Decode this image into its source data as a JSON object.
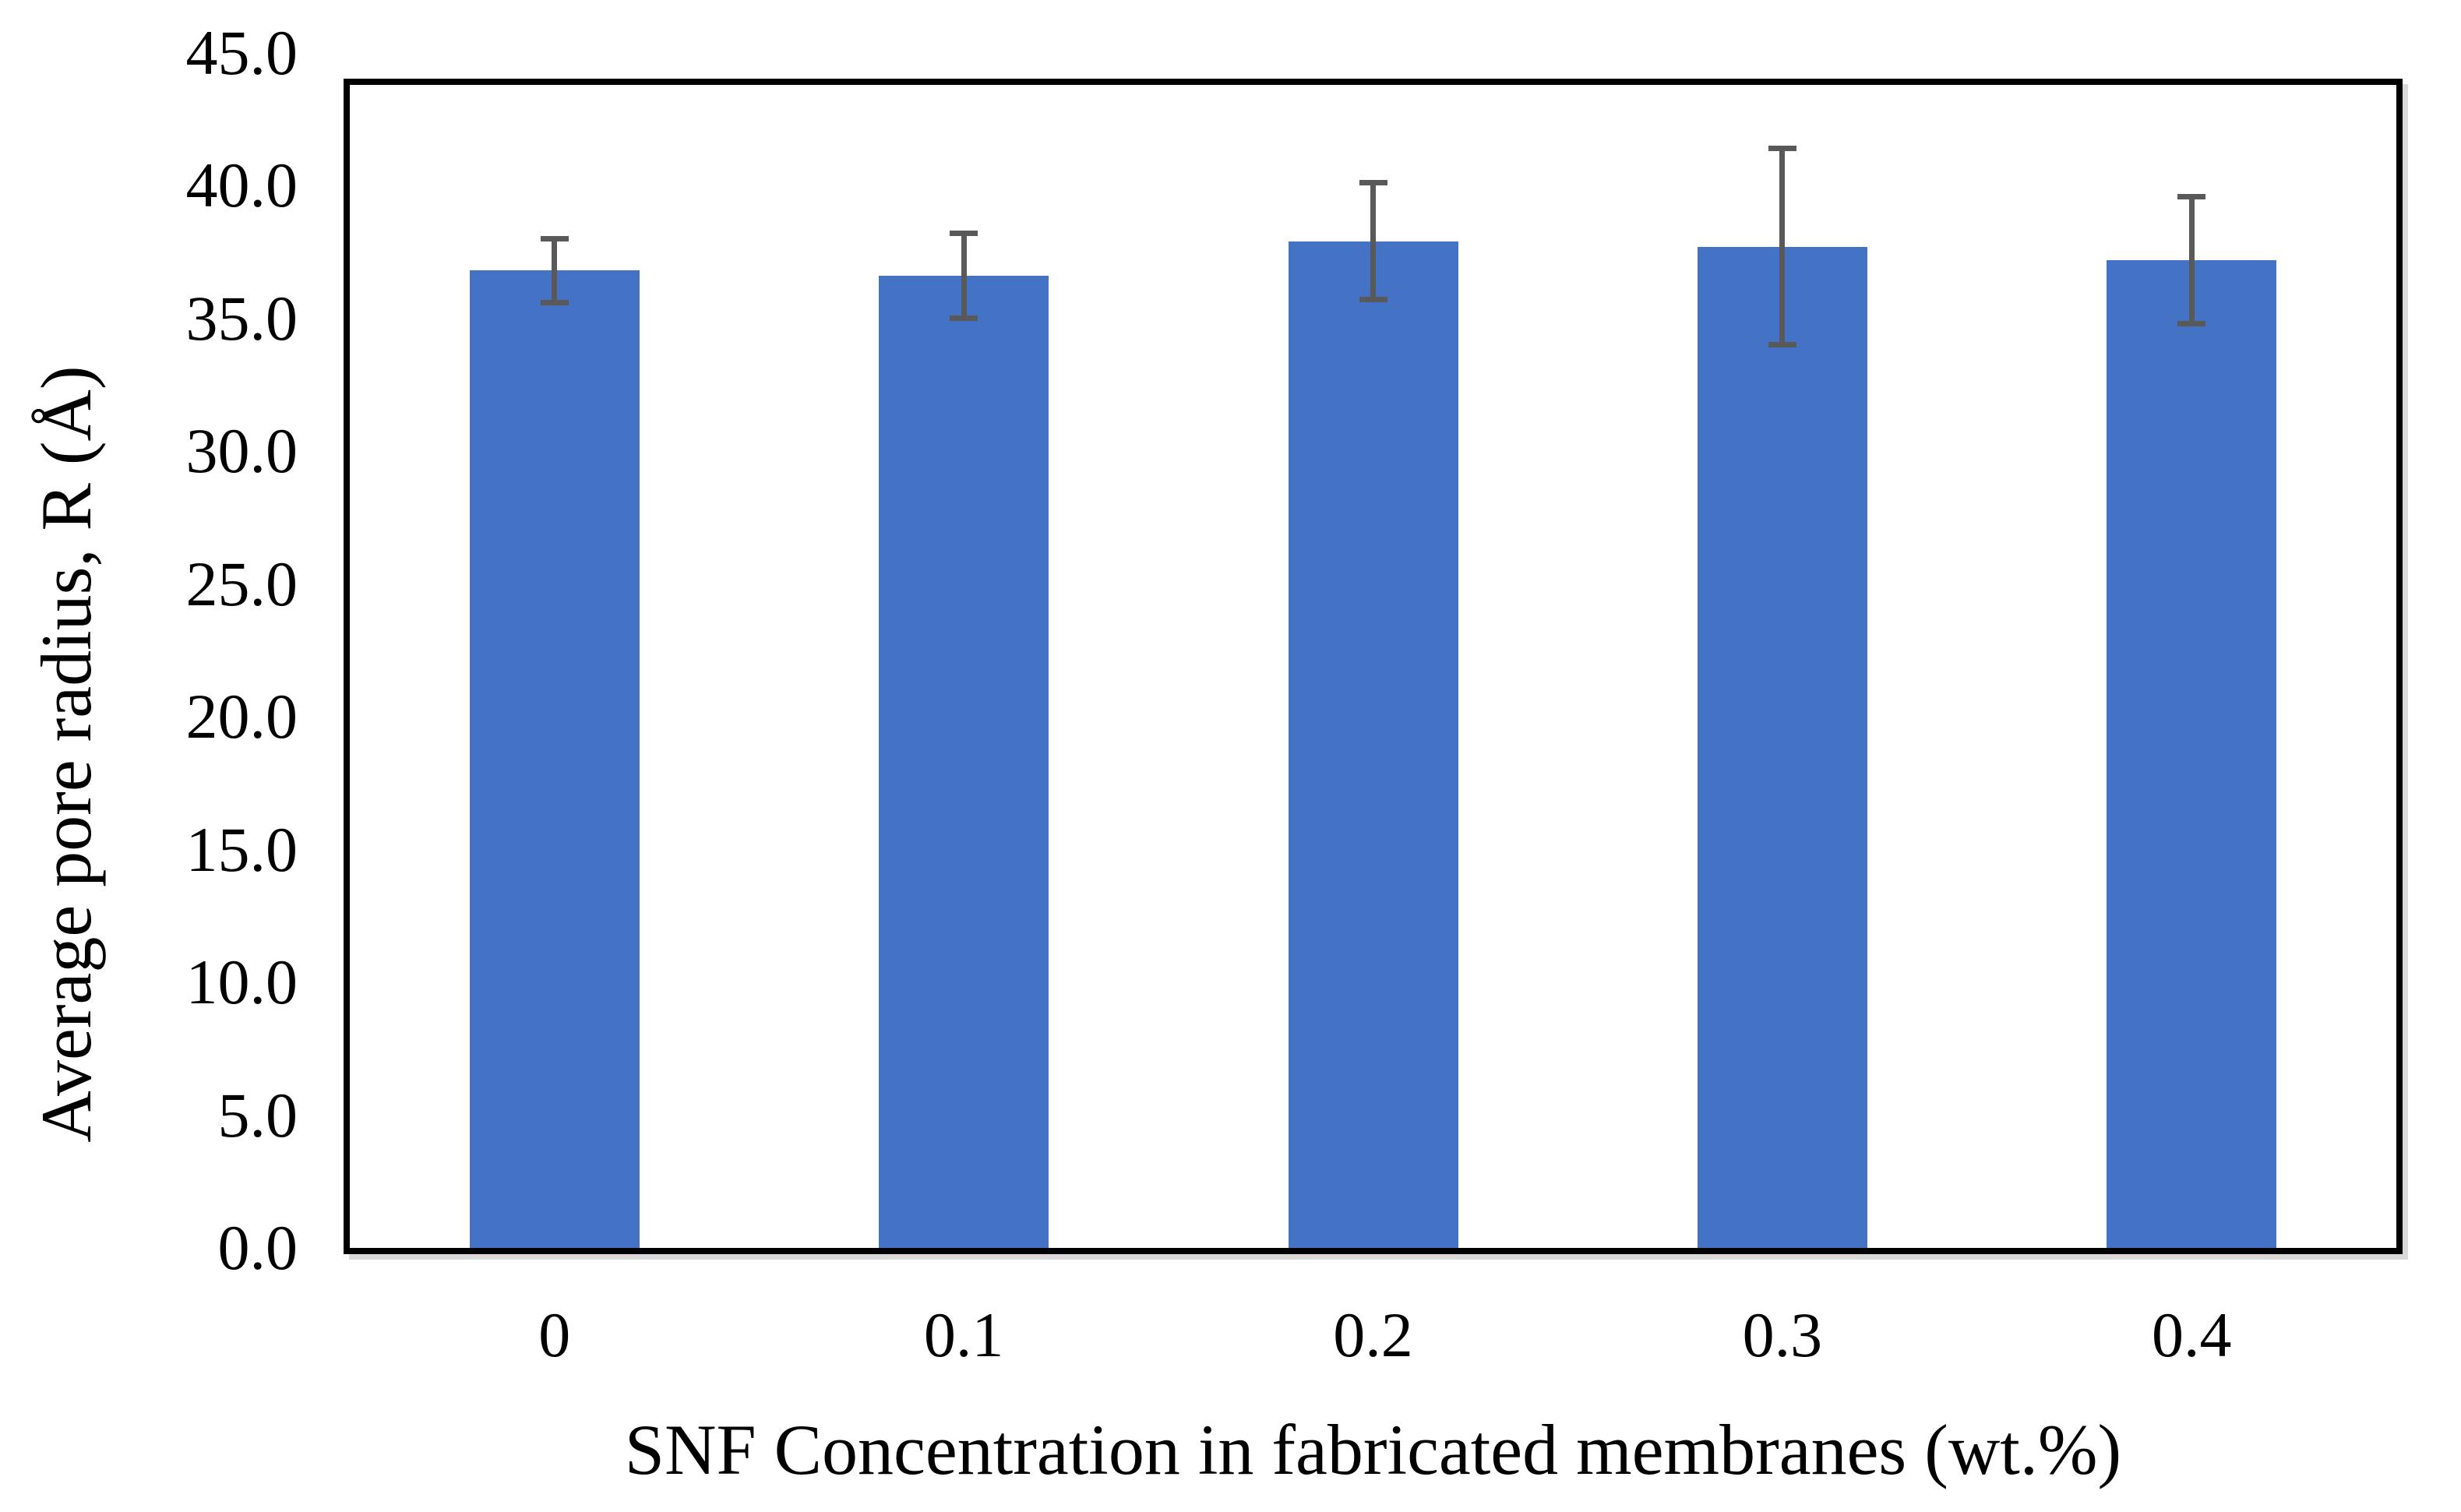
{
  "chart_data": {
    "type": "bar",
    "title": "",
    "xlabel": "SNF Concentration in fabricated membranes (wt.%)",
    "ylabel": "Average pore radius, R (Å)",
    "categories": [
      "0",
      "0.1",
      "0.2",
      "0.3",
      "0.4"
    ],
    "series": [
      {
        "name": "Average pore radius",
        "values": [
          36.8,
          36.6,
          37.9,
          37.7,
          37.2
        ],
        "error_bars": [
          1.2,
          1.6,
          2.2,
          3.7,
          2.4
        ]
      }
    ],
    "ylim": [
      0.0,
      45.0
    ],
    "y_tick_step": 5.0,
    "y_tick_labels": [
      "0.0",
      "5.0",
      "10.0",
      "15.0",
      "20.0",
      "25.0",
      "30.0",
      "35.0",
      "40.0",
      "45.0"
    ],
    "grid": false,
    "legend_position": "none",
    "bar_color": "#4472C4",
    "error_bar_color": "#595959",
    "frame_color": "#000000",
    "shadow_color": "#d9d9d9"
  }
}
